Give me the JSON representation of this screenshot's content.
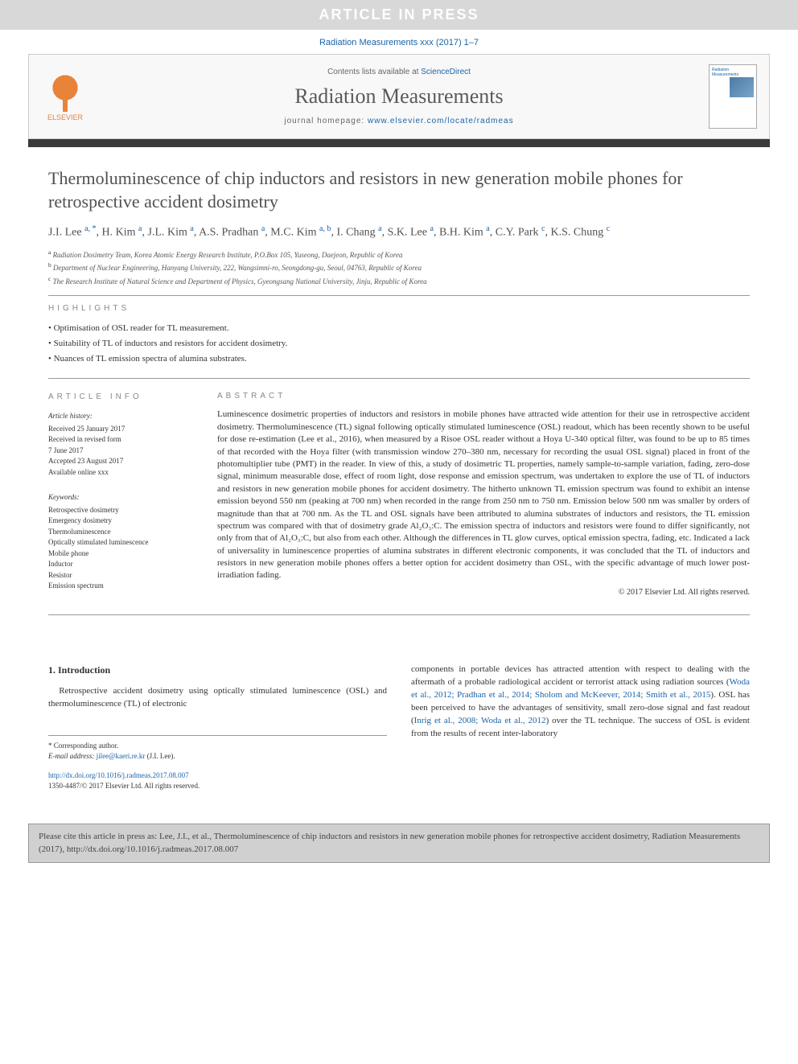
{
  "banner": {
    "text": "ARTICLE IN PRESS"
  },
  "citation_top": "Radiation Measurements xxx (2017) 1–7",
  "header": {
    "contents_prefix": "Contents lists available at ",
    "contents_link": "ScienceDirect",
    "journal": "Radiation Measurements",
    "homepage_prefix": "journal homepage: ",
    "homepage_url": "www.elsevier.com/locate/radmeas",
    "publisher_name": "ELSEVIER",
    "cover_label": "Radiation Measurements"
  },
  "title": "Thermoluminescence of chip inductors and resistors in new generation mobile phones for retrospective accident dosimetry",
  "authors_html": "J.I. Lee <sup>a, *</sup>, H. Kim <sup>a</sup>, J.L. Kim <sup>a</sup>, A.S. Pradhan <sup>a</sup>, M.C. Kim <sup>a, b</sup>, I. Chang <sup>a</sup>, S.K. Lee <sup>a</sup>, B.H. Kim <sup>a</sup>, C.Y. Park <sup>c</sup>, K.S. Chung <sup>c</sup>",
  "affiliations": [
    {
      "sup": "a",
      "text": "Radiation Dosimetry Team, Korea Atomic Energy Research Institute, P.O.Box 105, Yuseong, Daejeon, Republic of Korea"
    },
    {
      "sup": "b",
      "text": "Department of Nuclear Engineering, Hanyang University, 222, Wangsimni-ro, Seongdong-gu, Seoul, 04763, Republic of Korea"
    },
    {
      "sup": "c",
      "text": "The Research Institute of Natural Science and Department of Physics, Gyeongsang National University, Jinju, Republic of Korea"
    }
  ],
  "highlights_label": "HIGHLIGHTS",
  "highlights": [
    "Optimisation of OSL reader for TL measurement.",
    "Suitability of TL of inductors and resistors for accident dosimetry.",
    "Nuances of TL emission spectra of alumina substrates."
  ],
  "article_info": {
    "label": "ARTICLE INFO",
    "history_heading": "Article history:",
    "history": [
      "Received 25 January 2017",
      "Received in revised form",
      "7 June 2017",
      "Accepted 23 August 2017",
      "Available online xxx"
    ],
    "keywords_heading": "Keywords:",
    "keywords": [
      "Retrospective dosimetry",
      "Emergency dosimetry",
      "Thermoluminescence",
      "Optically stimulated luminescence",
      "Mobile phone",
      "Inductor",
      "Resistor",
      "Emission spectrum"
    ]
  },
  "abstract": {
    "label": "ABSTRACT",
    "text": "Luminescence dosimetric properties of inductors and resistors in mobile phones have attracted wide attention for their use in retrospective accident dosimetry. Thermoluminescence (TL) signal following optically stimulated luminescence (OSL) readout, which has been recently shown to be useful for dose re-estimation (Lee et al., 2016), when measured by a Risoe OSL reader without a Hoya U-340 optical filter, was found to be up to 85 times of that recorded with the Hoya filter (with transmission window 270–380 nm, necessary for recording the usual OSL signal) placed in front of the photomultiplier tube (PMT) in the reader. In view of this, a study of dosimetric TL properties, namely sample-to-sample variation, fading, zero-dose signal, minimum measurable dose, effect of room light, dose response and emission spectrum, was undertaken to explore the use of TL of inductors and resistors in new generation mobile phones for accident dosimetry. The hitherto unknown TL emission spectrum was found to exhibit an intense emission beyond 550 nm (peaking at 700 nm) when recorded in the range from 250 nm to 750 nm. Emission below 500 nm was smaller by orders of magnitude than that at 700 nm. As the TL and OSL signals have been attributed to alumina substrates of inductors and resistors, the TL emission spectrum was compared with that of dosimetry grade Al₂O₃:C. The emission spectra of inductors and resistors were found to differ significantly, not only from that of Al₂O₃:C, but also from each other. Although the differences in TL glow curves, optical emission spectra, fading, etc. Indicated a lack of universality in luminescence properties of alumina substrates in different electronic components, it was concluded that the TL of inductors and resistors in new generation mobile phones offers a better option for accident dosimetry than OSL, with the specific advantage of much lower post-irradiation fading.",
    "copyright": "© 2017 Elsevier Ltd. All rights reserved."
  },
  "body": {
    "section_heading": "1. Introduction",
    "left_para": "Retrospective accident dosimetry using optically stimulated luminescence (OSL) and thermoluminescence (TL) of electronic",
    "right_para_1": "components in portable devices has attracted attention with respect to dealing with the aftermath of a probable radiological accident or terrorist attack using radiation sources (",
    "right_ref_1": "Woda et al., 2012; Pradhan et al., 2014; Sholom and McKeever, 2014; Smith et al., 2015",
    "right_para_2": "). OSL has been perceived to have the advantages of sensitivity, small zero-dose signal and fast readout (",
    "right_ref_2": "Inrig et al., 2008; Woda et al., 2012",
    "right_para_3": ") over the TL technique. The success of OSL is evident from the results of recent inter-laboratory"
  },
  "footnote": {
    "corresponding": "* Corresponding author.",
    "email_label": "E-mail address: ",
    "email": "jilee@kaeri.re.kr",
    "email_person": " (J.I. Lee)."
  },
  "doi": {
    "url": "http://dx.doi.org/10.1016/j.radmeas.2017.08.007",
    "issn_line": "1350-4487/© 2017 Elsevier Ltd. All rights reserved."
  },
  "cite_box": "Please cite this article in press as: Lee, J.I., et al., Thermoluminescence of chip inductors and resistors in new generation mobile phones for retrospective accident dosimetry, Radiation Measurements (2017), http://dx.doi.org/10.1016/j.radmeas.2017.08.007"
}
